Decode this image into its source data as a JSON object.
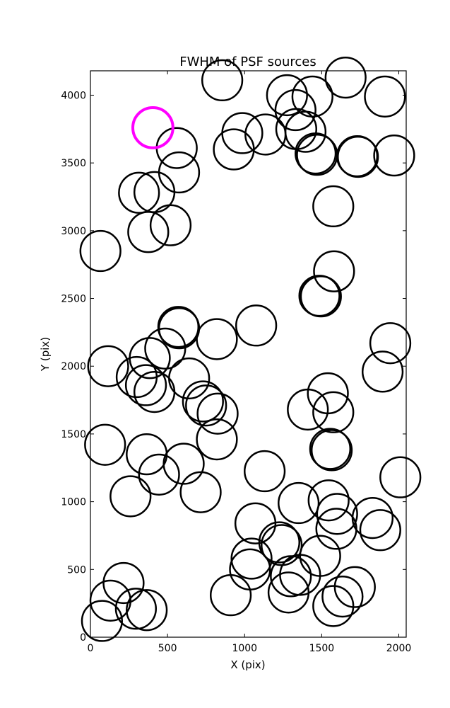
{
  "chart_data": {
    "type": "scatter",
    "title": "FWHM of PSF sources",
    "xlabel": "X (pix)",
    "ylabel": "Y (pix)",
    "xlim": [
      0,
      2048
    ],
    "ylim": [
      0,
      4180
    ],
    "xticks": [
      0,
      500,
      1000,
      1500,
      2000
    ],
    "yticks": [
      0,
      500,
      1000,
      1500,
      2000,
      2500,
      3000,
      3500,
      4000
    ],
    "xtick_labels": [
      "0",
      "500",
      "1000",
      "1500",
      "2000"
    ],
    "ytick_labels": [
      "0",
      "500",
      "1000",
      "1500",
      "2000",
      "2500",
      "3000",
      "3500",
      "4000"
    ],
    "grid": false,
    "marker": "open-circle",
    "marker_size_pix": 130,
    "colors": {
      "normal": "#000000",
      "highlight": "#ff00ff"
    },
    "highlight": [
      {
        "x": 405,
        "y": 3760
      }
    ],
    "points": [
      {
        "x": 855,
        "y": 4110
      },
      {
        "x": 1655,
        "y": 4130
      },
      {
        "x": 1275,
        "y": 4000
      },
      {
        "x": 1440,
        "y": 3990
      },
      {
        "x": 1910,
        "y": 3990
      },
      {
        "x": 1330,
        "y": 3890
      },
      {
        "x": 985,
        "y": 3720
      },
      {
        "x": 1135,
        "y": 3710
      },
      {
        "x": 1335,
        "y": 3750
      },
      {
        "x": 1395,
        "y": 3730
      },
      {
        "x": 560,
        "y": 3610
      },
      {
        "x": 930,
        "y": 3600
      },
      {
        "x": 1460,
        "y": 3570
      },
      {
        "x": 1470,
        "y": 3560
      },
      {
        "x": 1730,
        "y": 3550
      },
      {
        "x": 1735,
        "y": 3545
      },
      {
        "x": 1970,
        "y": 3555
      },
      {
        "x": 575,
        "y": 3430
      },
      {
        "x": 315,
        "y": 3280
      },
      {
        "x": 415,
        "y": 3285
      },
      {
        "x": 1575,
        "y": 3180
      },
      {
        "x": 520,
        "y": 3040
      },
      {
        "x": 375,
        "y": 2990
      },
      {
        "x": 65,
        "y": 2850
      },
      {
        "x": 1580,
        "y": 2700
      },
      {
        "x": 1485,
        "y": 2520
      },
      {
        "x": 1495,
        "y": 2515
      },
      {
        "x": 1075,
        "y": 2300
      },
      {
        "x": 570,
        "y": 2290
      },
      {
        "x": 575,
        "y": 2280
      },
      {
        "x": 820,
        "y": 2200
      },
      {
        "x": 1945,
        "y": 2170
      },
      {
        "x": 485,
        "y": 2130
      },
      {
        "x": 385,
        "y": 2060
      },
      {
        "x": 115,
        "y": 2000
      },
      {
        "x": 1895,
        "y": 1960
      },
      {
        "x": 300,
        "y": 1920
      },
      {
        "x": 640,
        "y": 1910
      },
      {
        "x": 360,
        "y": 1860
      },
      {
        "x": 415,
        "y": 1810
      },
      {
        "x": 1540,
        "y": 1800
      },
      {
        "x": 730,
        "y": 1740
      },
      {
        "x": 750,
        "y": 1710
      },
      {
        "x": 1410,
        "y": 1680
      },
      {
        "x": 1575,
        "y": 1660
      },
      {
        "x": 825,
        "y": 1650
      },
      {
        "x": 820,
        "y": 1460
      },
      {
        "x": 95,
        "y": 1420
      },
      {
        "x": 1555,
        "y": 1390
      },
      {
        "x": 1565,
        "y": 1380
      },
      {
        "x": 365,
        "y": 1350
      },
      {
        "x": 605,
        "y": 1280
      },
      {
        "x": 1130,
        "y": 1225
      },
      {
        "x": 445,
        "y": 1200
      },
      {
        "x": 2010,
        "y": 1180
      },
      {
        "x": 715,
        "y": 1070
      },
      {
        "x": 260,
        "y": 1040
      },
      {
        "x": 1545,
        "y": 1010
      },
      {
        "x": 1350,
        "y": 990
      },
      {
        "x": 1600,
        "y": 910
      },
      {
        "x": 1830,
        "y": 880
      },
      {
        "x": 1070,
        "y": 840
      },
      {
        "x": 1595,
        "y": 800
      },
      {
        "x": 1880,
        "y": 790
      },
      {
        "x": 1225,
        "y": 700
      },
      {
        "x": 1240,
        "y": 680
      },
      {
        "x": 1490,
        "y": 600
      },
      {
        "x": 1045,
        "y": 580
      },
      {
        "x": 1035,
        "y": 500
      },
      {
        "x": 1300,
        "y": 450
      },
      {
        "x": 1360,
        "y": 460
      },
      {
        "x": 215,
        "y": 400
      },
      {
        "x": 1715,
        "y": 370
      },
      {
        "x": 1285,
        "y": 330
      },
      {
        "x": 910,
        "y": 310
      },
      {
        "x": 1635,
        "y": 300
      },
      {
        "x": 130,
        "y": 270
      },
      {
        "x": 1575,
        "y": 230
      },
      {
        "x": 295,
        "y": 210
      },
      {
        "x": 365,
        "y": 200
      },
      {
        "x": 75,
        "y": 120
      }
    ]
  }
}
